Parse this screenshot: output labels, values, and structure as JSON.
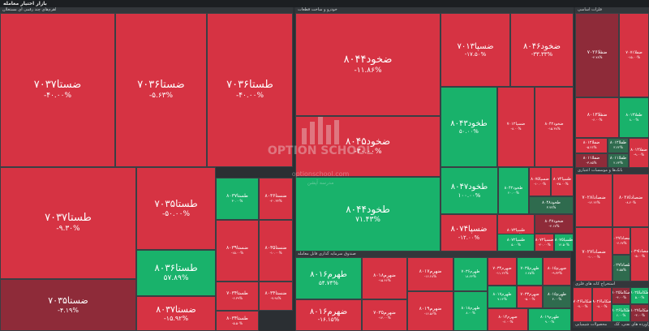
{
  "header": {
    "title": "بازار اختیار معامله"
  },
  "watermark": {
    "line1": "OPTION SCHOOL",
    "line2": "optionschool.com",
    "line3": "مدرسه آپشن"
  },
  "colors": {
    "gain": "#19b26b",
    "loss": "#d63343",
    "gain_dark": "#2f6b4e",
    "loss_dark": "#8e2b39",
    "grid": "#3a3f44",
    "background": "#2b2f33"
  },
  "chart_data": {
    "type": "treemap",
    "title": "بازار اختیار معامله",
    "groups": [
      {
        "name": "اهرم‌های چند رقمی ای مستغلان",
        "tiles": [
          {
            "name": "ضستا۷۰۳۷",
            "change": "-۴۰.۰۰%",
            "value": -40.0
          },
          {
            "name": "ضستا۷۰۳۶",
            "change": "-۵.۶۳%",
            "value": -5.63
          },
          {
            "name": "طستا۷۰۳۶",
            "change": "-۴۰.۰۰%",
            "value": -40.0
          },
          {
            "name": "طستا۷۰۳۷",
            "change": "-۹.۳۰%",
            "value": -9.3
          },
          {
            "name": "ضستا۷۰۳۵",
            "change": "-۴.۱۹%",
            "value": -4.19
          },
          {
            "name": "طستا۷۰۳۵",
            "change": "-۵۰.۰۰%",
            "value": -50.0
          },
          {
            "name": "طستا۸۰۳۶",
            "change": "۵۷.۸۹%",
            "value": 57.89
          },
          {
            "name": "ضستا۸۰۳۷",
            "change": "-۱۵.۹۲%",
            "value": -15.92
          },
          {
            "name": "طستا۸۰۳۷",
            "change": "۳۰.۰۰%",
            "value": 30.0
          },
          {
            "name": "ضستا۸۰۳۶",
            "change": "-۲۰.۳۳%",
            "value": -20.33
          },
          {
            "name": "ضستا۸۰۳۹",
            "change": "-۱۵.۰۰%",
            "value": -15.0
          },
          {
            "name": "ضستا۸۰۳۵",
            "change": "-۱۰.۰۰%",
            "value": -10.0
          },
          {
            "name": "طستا۷۰۳۴",
            "change": "-۶.۳۹%",
            "value": -6.39
          },
          {
            "name": "ضستا۸۰۳۴",
            "change": "-۷.۹۸%",
            "value": -7.98
          },
          {
            "name": "طستا۸۰۳۴",
            "change": "-۵.۵۰%",
            "value": -5.5
          }
        ]
      },
      {
        "name": "خودرو و ساخت قطعات",
        "tiles": [
          {
            "name": "ضخود۸۰۴۴",
            "change": "-۱۱.۸۶%",
            "value": -11.86
          },
          {
            "name": "ضسپا۷۰۱۳",
            "change": "-۱۷.۵۰%",
            "value": -17.5
          },
          {
            "name": "ضخود۸۰۴۶",
            "change": "-۳۳.۳۳%",
            "value": -33.33
          },
          {
            "name": "ضخود۸۰۴۵",
            "change": "-۳۰.۰۰%",
            "value": -30.0
          },
          {
            "name": "طخود۸۰۴۳",
            "change": "۵۰.۰۰%",
            "value": 50.0
          },
          {
            "name": "ضسپا۷۰۱۲",
            "change": "-۸.۰۰%",
            "value": -8.0
          },
          {
            "name": "ضخود۸۰۴۲",
            "change": "-۱۵.۳۸%",
            "value": -15.38
          },
          {
            "name": "طخود۸۰۴۴",
            "change": "۷۱.۴۳%",
            "value": 71.43
          },
          {
            "name": "طخود۸۰۴۷",
            "change": "۱۰۰.۰۰%",
            "value": 100.0
          },
          {
            "name": "ضسپا۸۰۷۴",
            "change": "-۱۲.۰۰%",
            "value": -12.0
          },
          {
            "name": "طسپا۸۰۷۳",
            "change": "-۱۸.۷۵%",
            "value": -18.75
          },
          {
            "name": "طخود۸۰۴۲",
            "change": "۲۰.۰۰%",
            "value": 20.0
          },
          {
            "name": "ضسپا۸۰۷۵",
            "change": "-۱۰.۰۰%",
            "value": -10.0
          },
          {
            "name": "طسپا۸۰۷۴",
            "change": "-۲۵.۰۰%",
            "value": -25.0
          },
          {
            "name": "طخود۸۰۴۸",
            "change": "۳.۷۷%",
            "value": 3.77
          },
          {
            "name": "ضخود۸۰۴۷",
            "change": "-۴.۱۷%",
            "value": -4.17
          },
          {
            "name": "طسپا۸۰۷۲",
            "change": "۵.۰۰%",
            "value": 5.0
          },
          {
            "name": "ضسپا۸۰۷۲",
            "change": "-۲۰.۰۰%",
            "value": -20.0
          },
          {
            "name": "طسپا۸۰۷۵",
            "change": "۱۲.۵۰%",
            "value": 12.5
          }
        ]
      },
      {
        "name": "فلزات اساسی",
        "tiles": [
          {
            "name": "ضفلا۷۰۲۶",
            "change": "-۴.۷۸%",
            "value": -4.78
          },
          {
            "name": "ضفلا۷۰۷۱",
            "change": "-۱۵.۰۰%",
            "value": -15.0
          },
          {
            "name": "ضفلا۸۰۱۳",
            "change": "-۶.۰۰%",
            "value": -6.0
          },
          {
            "name": "طفلا۸۰۱۳",
            "change": "۸.۰۰%",
            "value": 8.0
          },
          {
            "name": "ضفلا۸۰۱۲",
            "change": "-۵.۲۶%",
            "value": -5.26
          },
          {
            "name": "طفلا۸۰۱۲",
            "change": "۳.۲۲%",
            "value": 3.22
          },
          {
            "name": "ضفلا۸۰۱۱",
            "change": "-۳.۸۵%",
            "value": -3.85
          },
          {
            "name": "طفلا۸۰۱۱",
            "change": "۲.۶۳%",
            "value": 2.63
          },
          {
            "name": "ضفلا۸۰۱۴",
            "change": "-۹.۰۰%",
            "value": -9.0
          }
        ]
      },
      {
        "name": "بانک‌ها و موسسات اعتباری",
        "tiles": [
          {
            "name": "ضصادا۷۰۲۸",
            "change": "-۱۲.۲۲%",
            "value": -12.22
          },
          {
            "name": "ضصادا۸۰۲۸",
            "change": "-۸.۲۰%",
            "value": -8.2
          },
          {
            "name": "ضصادا۷۰۲۷",
            "change": "-۱۰.۰۰%",
            "value": -10.0
          },
          {
            "name": "ضصادا۸۰۲۷",
            "change": "-۶.۶۷%",
            "value": -6.67
          },
          {
            "name": "طصادا۸۰۲۷",
            "change": "۴.۵۵%",
            "value": 4.55
          },
          {
            "name": "ضصادا۸۰۲۹",
            "change": "-۵.۰۰%",
            "value": -5.0
          }
        ]
      },
      {
        "name": "صندوق سرمایه گذاری قابل معامله",
        "tiles": [
          {
            "name": "طهرم۸۰۱۶",
            "change": "۵۴.۷۴%",
            "value": 54.74
          },
          {
            "name": "ضهرم۸۰۱۸",
            "change": "-۱۵.۴۶%",
            "value": -15.46
          },
          {
            "name": "ضهرم۸۰۱۷",
            "change": "-۱۶.۲۸%",
            "value": -16.28
          },
          {
            "name": "طهرم۷۰۳۶",
            "change": "۱۸.۲۴%",
            "value": 18.24
          },
          {
            "name": "ضهرم۸۰۱۶",
            "change": "-۱۶.۱۵%",
            "value": -16.15
          },
          {
            "name": "ضهرم۷۰۳۵",
            "change": "-۱۴.۰۰%",
            "value": -14.0
          },
          {
            "name": "ضهرم۸۰۱۹",
            "change": "-۱۶.۵۶%",
            "value": -16.56
          },
          {
            "name": "طهرم۸۰۱۸",
            "change": "۸.۰۰%",
            "value": 8.0
          },
          {
            "name": "ضهرم۷۰۳۴",
            "change": "-۱۱.۲۲%",
            "value": -11.22
          },
          {
            "name": "طهرم۷۰۳۵",
            "change": "۶.۲۵%",
            "value": 6.25
          },
          {
            "name": "ضهرم۸۰۱۵",
            "change": "-۹.۳۳%",
            "value": -9.33
          },
          {
            "name": "طهرم۸۰۱۷",
            "change": "۷.۱۴%",
            "value": 7.14
          },
          {
            "name": "ضهرم۷۰۳۳",
            "change": "-۵.۰۰%",
            "value": -5.0
          },
          {
            "name": "طهرم۸۰۱۵",
            "change": "۴.۰۰%",
            "value": 4.0
          },
          {
            "name": "ضهرم۸۰۱۴",
            "change": "-۶.۰۰%",
            "value": -6.0
          },
          {
            "name": "طهرم۸۰۱۹",
            "change": "۹.۰۰%",
            "value": 9.0
          }
        ]
      },
      {
        "name": "استخراج کانه های فلزی",
        "tiles": [
          {
            "name": "ضکاما۷۰۲۶",
            "change": "-۷.۰۰%",
            "value": -7.0
          },
          {
            "name": "ضکاما۸۰۲۶",
            "change": "-۸.۰۰%",
            "value": -8.0
          },
          {
            "name": "ضکاما۸۰۲۵",
            "change": "-۴.۰۰%",
            "value": -4.0
          },
          {
            "name": "طکاما۸۰۲۵",
            "change": "۵.۰۰%",
            "value": 5.0
          },
          {
            "name": "طکاما۸۰۲۶",
            "change": "۶.۰۰%",
            "value": 6.0
          },
          {
            "name": "ضکاما۸۰۲۷",
            "change": "-۳.۰۰%",
            "value": -3.0
          }
        ]
      },
      {
        "name": "محصولات شیمیایی",
        "tiles": []
      },
      {
        "name": "فراورده های نفتی، کک",
        "tiles": []
      }
    ]
  }
}
